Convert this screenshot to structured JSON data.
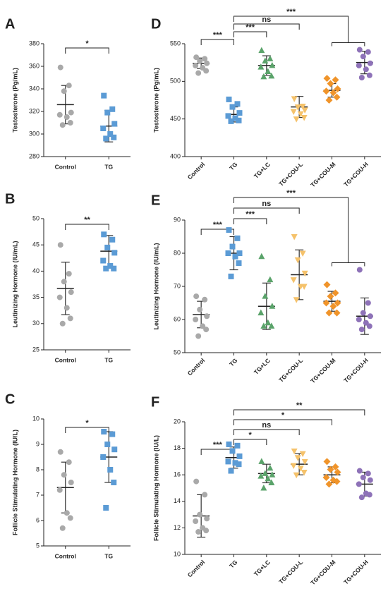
{
  "chart_data": [
    {
      "type": "dot",
      "panel": "A",
      "y_label": "Testosterone (Pg/mL)",
      "categories": [
        "Control",
        "TG"
      ],
      "colors": [
        "#a9a9a9",
        "#5b9bd5"
      ],
      "markers": [
        "circle",
        "square"
      ],
      "values": [
        [
          359,
          343,
          338,
          319,
          317,
          315,
          310,
          308
        ],
        [
          334,
          322,
          319,
          309,
          305,
          300,
          297,
          296
        ]
      ],
      "means": [
        326,
        307
      ],
      "sds": [
        17,
        14
      ],
      "ylim": [
        280,
        380
      ],
      "yticks": [
        280,
        300,
        320,
        340,
        360,
        380
      ],
      "brackets": [
        {
          "from": "Control",
          "to": "TG",
          "label": "*"
        }
      ]
    },
    {
      "type": "dot",
      "panel": "B",
      "y_label": "Leutinizing Hormone (IU/mL)",
      "categories": [
        "Control",
        "TG"
      ],
      "colors": [
        "#a9a9a9",
        "#5b9bd5"
      ],
      "markers": [
        "circle",
        "square"
      ],
      "values": [
        [
          45,
          39.5,
          38,
          36,
          35,
          33,
          31,
          30
        ],
        [
          47,
          46,
          44.5,
          43.5,
          42,
          41,
          40.5,
          40.5
        ]
      ],
      "means": [
        36.7,
        43.8
      ],
      "sds": [
        5,
        3
      ],
      "ylim": [
        25,
        50
      ],
      "yticks": [
        25,
        30,
        35,
        40,
        45,
        50
      ],
      "brackets": [
        {
          "from": "Control",
          "to": "TG",
          "label": "**"
        }
      ]
    },
    {
      "type": "dot",
      "panel": "C",
      "y_label": "Follicle Stimulating Hormone (IU/L)",
      "categories": [
        "Control",
        "TG"
      ],
      "colors": [
        "#a9a9a9",
        "#5b9bd5"
      ],
      "markers": [
        "circle",
        "square"
      ],
      "values": [
        [
          8.7,
          8.3,
          7.8,
          7.5,
          7.2,
          6.3,
          6.1,
          5.7
        ],
        [
          9.5,
          9.4,
          9.0,
          8.8,
          8.5,
          8.0,
          7.5,
          6.5
        ]
      ],
      "means": [
        7.3,
        8.5
      ],
      "sds": [
        1,
        1
      ],
      "ylim": [
        5,
        10
      ],
      "yticks": [
        5,
        6,
        7,
        8,
        9,
        10
      ],
      "brackets": [
        {
          "from": "Control",
          "to": "TG",
          "label": "*"
        }
      ]
    },
    {
      "type": "dot",
      "panel": "D",
      "y_label": "Testosterone (Pg/mL)",
      "categories": [
        "Control",
        "TG",
        "TG+LC",
        "TG+COU-L",
        "TG+COU-M",
        "TG+COU-H"
      ],
      "colors": [
        "#a9a9a9",
        "#5b9bd5",
        "#5aa36a",
        "#f5c26b",
        "#f0942a",
        "#8e72b8"
      ],
      "markers": [
        "circle",
        "square",
        "triangle",
        "triangle-down",
        "diamond",
        "circle"
      ],
      "values": [
        [
          532,
          530,
          527,
          524,
          521,
          518,
          514,
          511
        ],
        [
          476,
          470,
          466,
          458,
          454,
          451,
          448,
          447
        ],
        [
          541,
          530,
          527,
          521,
          519,
          513,
          507,
          506
        ],
        [
          477,
          467,
          466,
          462,
          460,
          457,
          452,
          450
        ],
        [
          504,
          502,
          497,
          490,
          487,
          485,
          479,
          475
        ],
        [
          542,
          539,
          533,
          524,
          521,
          516,
          508,
          505
        ]
      ],
      "means": [
        524,
        456,
        521,
        466,
        488,
        525
      ],
      "sds": [
        7,
        10,
        13,
        14,
        9,
        15
      ],
      "ylim": [
        400,
        550
      ],
      "yticks": [
        400,
        450,
        500,
        550
      ],
      "brackets": [
        {
          "from": "Control",
          "to": "TG",
          "label": "***"
        },
        {
          "from": "TG",
          "to": "TG+LC",
          "label": "***"
        },
        {
          "from": "TG",
          "to": "TG+COU-L",
          "label": "ns"
        },
        {
          "from": "TG",
          "to": [
            "TG+COU-M",
            "TG+COU-H"
          ],
          "label": "***"
        }
      ]
    },
    {
      "type": "dot",
      "panel": "E",
      "y_label": "Leutinizing Hormone (IU/mL)",
      "categories": [
        "Control",
        "TG",
        "TG+LC",
        "TG+COU-L",
        "TG+COU-M",
        "TG+COU-H"
      ],
      "colors": [
        "#a9a9a9",
        "#5b9bd5",
        "#5aa36a",
        "#f5c26b",
        "#f0942a",
        "#8e72b8"
      ],
      "markers": [
        "circle",
        "square",
        "triangle",
        "triangle-down",
        "diamond",
        "circle"
      ],
      "values": [
        [
          67,
          66,
          63,
          61,
          60,
          58,
          57,
          55
        ],
        [
          87,
          84.5,
          82,
          80,
          80,
          79,
          77,
          73
        ],
        [
          79,
          72,
          67,
          64,
          62,
          59,
          58,
          58
        ],
        [
          85,
          80,
          78,
          74,
          72,
          70,
          70,
          66
        ],
        [
          70.5,
          68,
          67,
          65,
          65,
          64,
          62,
          62
        ],
        [
          75,
          65,
          62,
          61,
          60,
          59,
          58,
          57
        ]
      ],
      "means": [
        61.5,
        80,
        64,
        73.5,
        65.5,
        61
      ],
      "sds": [
        4,
        5,
        7,
        7.5,
        3,
        5.5
      ],
      "ylim": [
        50,
        90
      ],
      "yticks": [
        50,
        60,
        70,
        80,
        90
      ],
      "brackets": [
        {
          "from": "Control",
          "to": "TG",
          "label": "***"
        },
        {
          "from": "TG",
          "to": "TG+LC",
          "label": "***"
        },
        {
          "from": "TG",
          "to": "TG+COU-L",
          "label": "ns"
        },
        {
          "from": "TG",
          "to": [
            "TG+COU-M",
            "TG+COU-H"
          ],
          "label": "***"
        }
      ]
    },
    {
      "type": "dot",
      "panel": "F",
      "y_label": "Follicle Stimulating Hormone (IU/L)",
      "categories": [
        "Control",
        "TG",
        "TG+LC",
        "TG+COU-L",
        "TG+COU-M",
        "TG+COU-H"
      ],
      "colors": [
        "#a9a9a9",
        "#5b9bd5",
        "#5aa36a",
        "#f5c26b",
        "#f0942a",
        "#8e72b8"
      ],
      "markers": [
        "circle",
        "square",
        "triangle",
        "triangle-down",
        "diamond",
        "circle"
      ],
      "values": [
        [
          15.5,
          14.5,
          13,
          12.7,
          12.5,
          12,
          11.8,
          11.7
        ],
        [
          18.3,
          18.2,
          17.8,
          17.4,
          17,
          16.9,
          16.8,
          16.3
        ],
        [
          17,
          16.5,
          16.1,
          16,
          15.9,
          15.7,
          15.4,
          15
        ],
        [
          17.8,
          17.6,
          17.3,
          17,
          16.7,
          16.5,
          16.2,
          16
        ],
        [
          17,
          16.6,
          16.4,
          16.2,
          15.8,
          15.6,
          15.5,
          15.3
        ],
        [
          16.3,
          16.1,
          15.8,
          15.6,
          15.3,
          14.6,
          14.5,
          14.3
        ]
      ],
      "means": [
        12.9,
        17.3,
        16.1,
        16.8,
        16,
        15.3
      ],
      "sds": [
        1.6,
        0.8,
        0.7,
        0.8,
        0.6,
        0.9
      ],
      "ylim": [
        10,
        20
      ],
      "yticks": [
        10,
        12,
        14,
        16,
        18,
        20
      ],
      "brackets": [
        {
          "from": "Control",
          "to": "TG",
          "label": "***"
        },
        {
          "from": "TG",
          "to": "TG+LC",
          "label": "*"
        },
        {
          "from": "TG",
          "to": "TG+COU-L",
          "label": "ns"
        },
        {
          "from": "TG",
          "to": "TG+COU-M",
          "label": "*"
        },
        {
          "from": "TG",
          "to": "TG+COU-H",
          "label": "**"
        }
      ]
    }
  ]
}
